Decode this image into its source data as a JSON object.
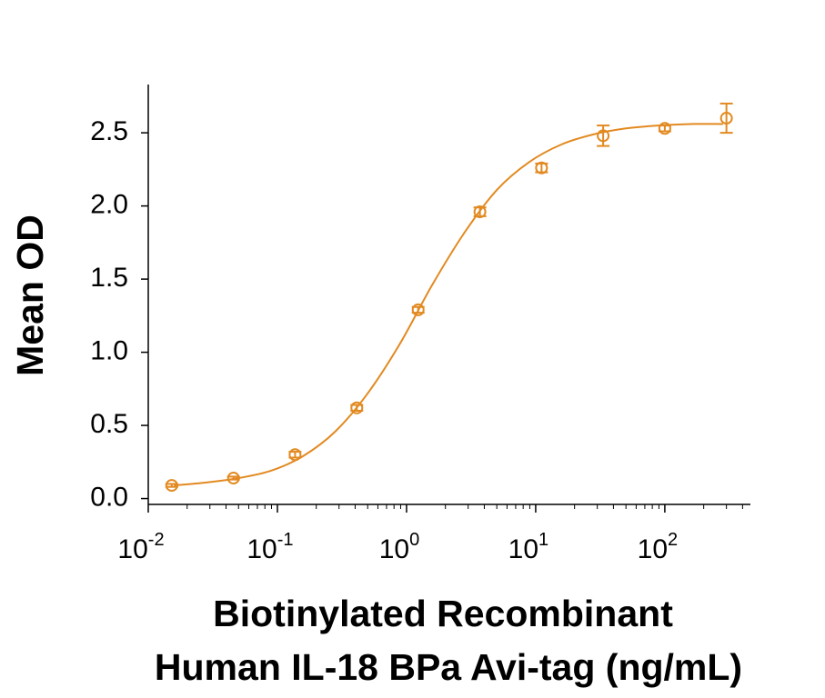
{
  "chart_data": {
    "type": "scatter",
    "xlabel": [
      "Biotinylated Recombinant",
      "Human IL-18 BPa Avi-tag (ng/mL)"
    ],
    "ylabel": "Mean OD",
    "color": "#e28a21",
    "xscale": "log",
    "x": [
      0.0152,
      0.0457,
      0.137,
      0.412,
      1.23,
      3.7,
      11.1,
      33.3,
      100,
      300
    ],
    "values": [
      0.09,
      0.14,
      0.3,
      0.62,
      1.29,
      1.96,
      2.26,
      2.48,
      2.53,
      2.6
    ],
    "errors": [
      0.01,
      0.01,
      0.02,
      0.02,
      0.02,
      0.03,
      0.03,
      0.07,
      0.02,
      0.1
    ],
    "curve": {
      "x": [
        0.0158,
        0.0282,
        0.0501,
        0.0891,
        0.158,
        0.282,
        0.501,
        0.891,
        1.58,
        2.82,
        5.01,
        8.91,
        15.8,
        28.2,
        50.1,
        89.1,
        158,
        282
      ],
      "values": [
        0.09,
        0.11,
        0.14,
        0.19,
        0.29,
        0.46,
        0.72,
        1.06,
        1.46,
        1.82,
        2.11,
        2.3,
        2.42,
        2.49,
        2.53,
        2.55,
        2.56,
        2.56
      ]
    },
    "xlim": [
      0.01,
      460
    ],
    "ylim": [
      -0.04,
      2.83
    ],
    "xticks": [
      {
        "value": 0.01,
        "label": "10",
        "exponent": "-2"
      },
      {
        "value": 0.1,
        "label": "10",
        "exponent": "-1"
      },
      {
        "value": 1,
        "label": "10",
        "exponent": "0"
      },
      {
        "value": 10,
        "label": "10",
        "exponent": "1"
      },
      {
        "value": 100,
        "label": "10",
        "exponent": "2"
      }
    ],
    "xminorticks": [
      0.02,
      0.03,
      0.04,
      0.05,
      0.06,
      0.07,
      0.08,
      0.09,
      0.2,
      0.3,
      0.4,
      0.5,
      0.6,
      0.7,
      0.8,
      0.9,
      2,
      3,
      4,
      5,
      6,
      7,
      8,
      9,
      20,
      30,
      40,
      50,
      60,
      70,
      80,
      90,
      200,
      300,
      400
    ],
    "yticks": [
      {
        "value": 0,
        "label": "0.0"
      },
      0.5,
      {
        "value": 1,
        "label": "1.0"
      },
      1.5,
      {
        "value": 2,
        "label": "2.0"
      },
      2.5
    ]
  }
}
